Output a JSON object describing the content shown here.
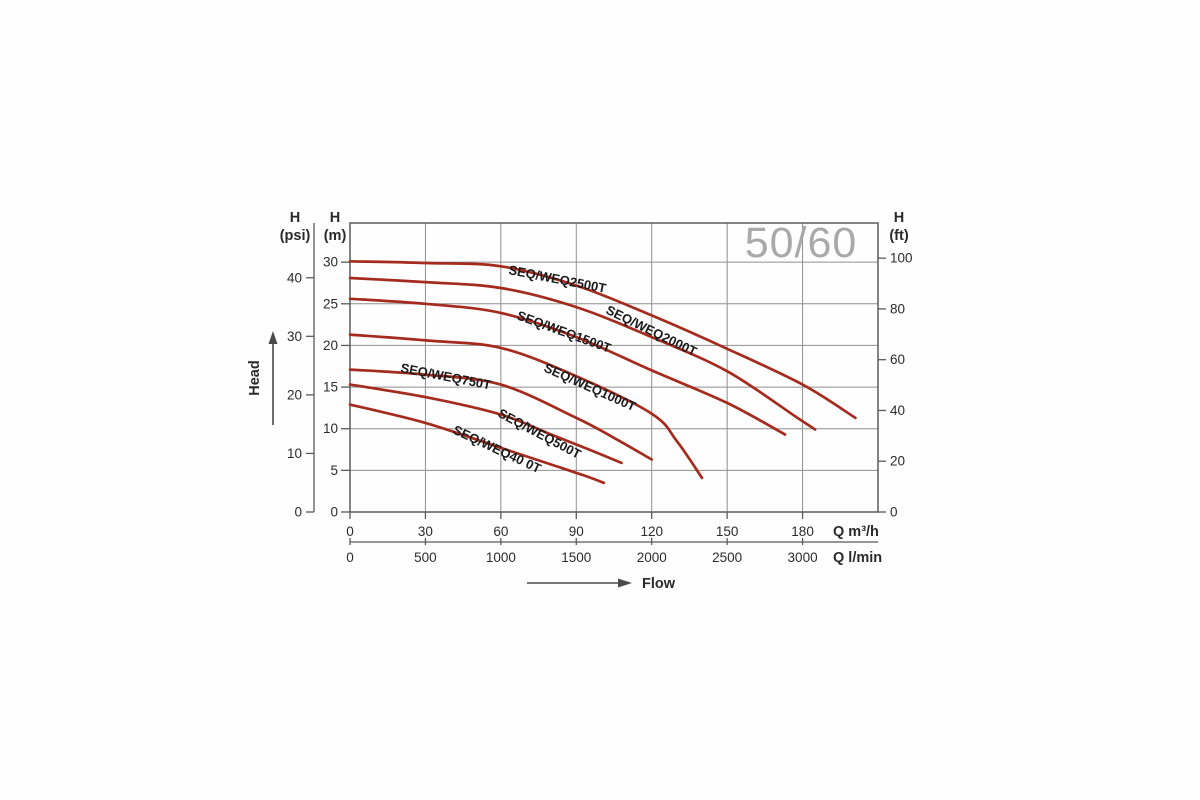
{
  "chart_data": {
    "type": "line",
    "title": "50/60",
    "title_color": "#a9a9a9",
    "curve_color": "#a42b1d",
    "grid_color": "#8f8f8f",
    "frame_color": "#5a5a5a",
    "flow_label": "Flow",
    "head_label": "Head",
    "axes": {
      "x_m3h": {
        "label": "Q m³/h",
        "ticks": [
          0,
          30,
          60,
          90,
          120,
          150,
          180
        ],
        "range": [
          0,
          210
        ]
      },
      "x_lmin": {
        "label": "Q l/min",
        "ticks": [
          0,
          500,
          1000,
          1500,
          2000,
          2500,
          3000
        ],
        "range": [
          0,
          3500
        ]
      },
      "y_m": {
        "label_line1": "H",
        "label_line2": "(m)",
        "ticks": [
          0,
          5,
          10,
          15,
          20,
          25,
          30
        ],
        "range": [
          0,
          34.7
        ]
      },
      "y_psi": {
        "label_line1": "H",
        "label_line2": "(psi)",
        "ticks": [
          0,
          10,
          20,
          30,
          40
        ],
        "m_per_unit": 0.7031
      },
      "y_ft": {
        "label_line1": "H",
        "label_line2": "(ft)",
        "ticks": [
          0,
          20,
          40,
          60,
          80,
          100
        ],
        "m_per_unit": 0.3048
      }
    },
    "series": [
      {
        "name": "SEQ/WEQ2500T",
        "points": [
          [
            0,
            30.1
          ],
          [
            30,
            29.9
          ],
          [
            60,
            29.5
          ],
          [
            90,
            27.2
          ],
          [
            120,
            23.6
          ],
          [
            150,
            19.6
          ],
          [
            180,
            15.3
          ],
          [
            201,
            11.3
          ]
        ],
        "label": {
          "x": 508,
          "y": 274,
          "rot": 11
        }
      },
      {
        "name": "SEQ/WEQ2000T",
        "points": [
          [
            0,
            28.1
          ],
          [
            30,
            27.6
          ],
          [
            60,
            26.9
          ],
          [
            90,
            24.6
          ],
          [
            120,
            21.0
          ],
          [
            150,
            16.9
          ],
          [
            178,
            11.3
          ],
          [
            185,
            9.9
          ]
        ],
        "label": {
          "x": 605,
          "y": 313,
          "rot": 26
        }
      },
      {
        "name": "SEQ/WEQ1500T",
        "points": [
          [
            0,
            25.6
          ],
          [
            30,
            25.0
          ],
          [
            60,
            23.9
          ],
          [
            90,
            21.0
          ],
          [
            120,
            17.0
          ],
          [
            150,
            13.1
          ],
          [
            173,
            9.3
          ]
        ],
        "label": {
          "x": 516,
          "y": 319,
          "rot": 20
        }
      },
      {
        "name": "SEQ/WEQ1000T",
        "points": [
          [
            0,
            21.3
          ],
          [
            30,
            20.6
          ],
          [
            60,
            19.7
          ],
          [
            90,
            16.3
          ],
          [
            120,
            11.8
          ],
          [
            130,
            8.5
          ],
          [
            140,
            4.1
          ]
        ],
        "label": {
          "x": 543,
          "y": 371,
          "rot": 24
        }
      },
      {
        "name": "SEQ/WEQ750T",
        "points": [
          [
            0,
            17.1
          ],
          [
            30,
            16.5
          ],
          [
            60,
            15.3
          ],
          [
            90,
            11.3
          ],
          [
            105,
            8.9
          ],
          [
            120,
            6.3
          ]
        ],
        "label": {
          "x": 400,
          "y": 372,
          "rot": 11
        }
      },
      {
        "name": "SEQ/WEQ500T",
        "points": [
          [
            0,
            15.3
          ],
          [
            30,
            13.8
          ],
          [
            60,
            11.7
          ],
          [
            80,
            9.3
          ],
          [
            95,
            7.5
          ],
          [
            108,
            5.9
          ]
        ],
        "label": {
          "x": 497,
          "y": 416,
          "rot": 28
        }
      },
      {
        "name": "SEQ/WEQ40 0T",
        "points": [
          [
            0,
            12.9
          ],
          [
            30,
            10.7
          ],
          [
            60,
            7.7
          ],
          [
            80,
            5.7
          ],
          [
            93,
            4.4
          ],
          [
            101,
            3.5
          ]
        ],
        "label": {
          "x": 452,
          "y": 433,
          "rot": 25
        }
      }
    ]
  }
}
